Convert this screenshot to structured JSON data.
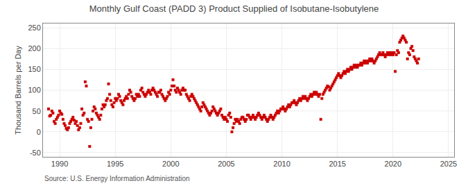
{
  "chart_data": {
    "type": "scatter",
    "title": "Monthly Gulf Coast (PADD 3) Product Supplied of Isobutane-Isobutylene",
    "ylabel": "Thousand Barrels per Day",
    "annotations": [
      "Source: U.S. Energy Information Administration"
    ],
    "color": "#cc0000",
    "marker": "square",
    "grid": true,
    "xlim": [
      1988.5,
      2025.5
    ],
    "ylim": [
      -60,
      260
    ],
    "xticks": [
      1990,
      1995,
      2000,
      2005,
      2010,
      2015,
      2020,
      2025
    ],
    "yticks": [
      -50,
      0,
      50,
      100,
      150,
      200,
      250
    ],
    "x": [
      1989.0,
      1989.1,
      1989.2,
      1989.3,
      1989.4,
      1989.5,
      1989.6,
      1989.7,
      1989.8,
      1989.9,
      1990.0,
      1990.1,
      1990.2,
      1990.3,
      1990.4,
      1990.5,
      1990.6,
      1990.7,
      1990.8,
      1990.9,
      1991.0,
      1991.1,
      1991.2,
      1991.3,
      1991.4,
      1991.5,
      1991.6,
      1991.7,
      1991.8,
      1991.9,
      1992.0,
      1992.1,
      1992.2,
      1992.3,
      1992.4,
      1992.5,
      1992.6,
      1992.7,
      1992.8,
      1992.9,
      1993.0,
      1993.1,
      1993.2,
      1993.3,
      1993.4,
      1993.5,
      1993.6,
      1993.7,
      1993.8,
      1993.9,
      1994.0,
      1994.1,
      1994.2,
      1994.3,
      1994.4,
      1994.5,
      1994.6,
      1994.7,
      1994.8,
      1994.9,
      1995.0,
      1995.1,
      1995.2,
      1995.3,
      1995.4,
      1995.5,
      1995.6,
      1995.7,
      1995.8,
      1995.9,
      1996.0,
      1996.1,
      1996.2,
      1996.3,
      1996.4,
      1996.5,
      1996.6,
      1996.7,
      1996.8,
      1996.9,
      1997.0,
      1997.1,
      1997.2,
      1997.3,
      1997.4,
      1997.5,
      1997.6,
      1997.7,
      1997.8,
      1997.9,
      1998.0,
      1998.1,
      1998.2,
      1998.3,
      1998.4,
      1998.5,
      1998.6,
      1998.7,
      1998.8,
      1998.9,
      1999.0,
      1999.1,
      1999.2,
      1999.3,
      1999.4,
      1999.5,
      1999.6,
      1999.7,
      1999.8,
      1999.9,
      2000.0,
      2000.1,
      2000.2,
      2000.3,
      2000.4,
      2000.5,
      2000.6,
      2000.7,
      2000.8,
      2000.9,
      2001.0,
      2001.1,
      2001.2,
      2001.3,
      2001.4,
      2001.5,
      2001.6,
      2001.7,
      2001.8,
      2001.9,
      2002.0,
      2002.1,
      2002.2,
      2002.3,
      2002.4,
      2002.5,
      2002.6,
      2002.7,
      2002.8,
      2002.9,
      2003.0,
      2003.1,
      2003.2,
      2003.3,
      2003.4,
      2003.5,
      2003.6,
      2003.7,
      2003.8,
      2003.9,
      2004.0,
      2004.1,
      2004.2,
      2004.3,
      2004.4,
      2004.5,
      2004.6,
      2004.7,
      2004.8,
      2004.9,
      2005.0,
      2005.1,
      2005.2,
      2005.3,
      2005.4,
      2005.5,
      2005.6,
      2005.7,
      2005.8,
      2005.9,
      2006.0,
      2006.1,
      2006.2,
      2006.3,
      2006.4,
      2006.5,
      2006.6,
      2006.7,
      2006.8,
      2006.9,
      2007.0,
      2007.1,
      2007.2,
      2007.3,
      2007.4,
      2007.5,
      2007.6,
      2007.7,
      2007.8,
      2007.9,
      2008.0,
      2008.1,
      2008.2,
      2008.3,
      2008.4,
      2008.5,
      2008.6,
      2008.7,
      2008.8,
      2008.9,
      2009.0,
      2009.1,
      2009.2,
      2009.3,
      2009.4,
      2009.5,
      2009.6,
      2009.7,
      2009.8,
      2009.9,
      2010.0,
      2010.1,
      2010.2,
      2010.3,
      2010.4,
      2010.5,
      2010.6,
      2010.7,
      2010.8,
      2010.9,
      2011.0,
      2011.1,
      2011.2,
      2011.3,
      2011.4,
      2011.5,
      2011.6,
      2011.7,
      2011.8,
      2011.9,
      2012.0,
      2012.1,
      2012.2,
      2012.3,
      2012.4,
      2012.5,
      2012.6,
      2012.7,
      2012.8,
      2012.9,
      2013.0,
      2013.1,
      2013.2,
      2013.3,
      2013.4,
      2013.5,
      2013.6,
      2013.7,
      2013.8,
      2013.9,
      2014.0,
      2014.1,
      2014.2,
      2014.3,
      2014.4,
      2014.5,
      2014.6,
      2014.7,
      2014.8,
      2014.9,
      2015.0,
      2015.1,
      2015.2,
      2015.3,
      2015.4,
      2015.5,
      2015.6,
      2015.7,
      2015.8,
      2015.9,
      2016.0,
      2016.1,
      2016.2,
      2016.3,
      2016.4,
      2016.5,
      2016.6,
      2016.7,
      2016.8,
      2016.9,
      2017.0,
      2017.1,
      2017.2,
      2017.3,
      2017.4,
      2017.5,
      2017.6,
      2017.7,
      2017.8,
      2017.9,
      2018.0,
      2018.1,
      2018.2,
      2018.3,
      2018.4,
      2018.5,
      2018.6,
      2018.7,
      2018.8,
      2018.9,
      2019.0,
      2019.1,
      2019.2,
      2019.3,
      2019.4,
      2019.5,
      2019.6,
      2019.7,
      2019.8,
      2019.9,
      2020.0,
      2020.1,
      2020.2,
      2020.3,
      2020.4,
      2020.5,
      2020.6,
      2020.7,
      2020.8,
      2020.9,
      2021.0,
      2021.1,
      2021.2,
      2021.3,
      2021.4,
      2021.5,
      2021.6,
      2021.7,
      2021.8,
      2021.9,
      2022.0,
      2022.1,
      2022.2,
      2022.3
    ],
    "values": [
      55,
      38,
      40,
      50,
      45,
      25,
      20,
      30,
      35,
      40,
      50,
      45,
      42,
      30,
      20,
      15,
      8,
      5,
      10,
      20,
      25,
      30,
      35,
      28,
      20,
      25,
      15,
      5,
      10,
      20,
      55,
      40,
      45,
      120,
      110,
      30,
      25,
      -35,
      10,
      30,
      50,
      60,
      55,
      45,
      40,
      35,
      30,
      40,
      55,
      65,
      60,
      65,
      75,
      80,
      115,
      90,
      75,
      65,
      60,
      70,
      80,
      75,
      80,
      90,
      85,
      75,
      70,
      65,
      75,
      80,
      85,
      80,
      90,
      100,
      95,
      85,
      80,
      75,
      80,
      90,
      85,
      90,
      85,
      100,
      105,
      95,
      90,
      85,
      90,
      95,
      100,
      95,
      90,
      100,
      105,
      100,
      95,
      90,
      85,
      95,
      95,
      100,
      90,
      85,
      80,
      75,
      80,
      85,
      95,
      90,
      100,
      110,
      125,
      110,
      100,
      95,
      105,
      100,
      95,
      90,
      100,
      105,
      100,
      100,
      90,
      85,
      80,
      75,
      85,
      90,
      85,
      80,
      75,
      70,
      65,
      60,
      55,
      50,
      60,
      70,
      65,
      60,
      55,
      50,
      45,
      40,
      45,
      50,
      60,
      55,
      50,
      45,
      40,
      45,
      50,
      55,
      40,
      35,
      30,
      35,
      30,
      25,
      40,
      45,
      35,
      0,
      10,
      20,
      30,
      25,
      30,
      25,
      20,
      30,
      35,
      35,
      30,
      25,
      30,
      40,
      40,
      35,
      30,
      35,
      40,
      35,
      30,
      35,
      40,
      45,
      40,
      35,
      30,
      35,
      40,
      35,
      30,
      25,
      30,
      35,
      40,
      35,
      30,
      35,
      40,
      45,
      50,
      45,
      50,
      55,
      55,
      60,
      55,
      50,
      55,
      60,
      65,
      60,
      65,
      70,
      70,
      75,
      70,
      65,
      70,
      75,
      80,
      75,
      80,
      85,
      80,
      85,
      80,
      75,
      80,
      85,
      90,
      85,
      90,
      95,
      90,
      95,
      90,
      85,
      90,
      30,
      80,
      90,
      95,
      100,
      105,
      110,
      108,
      100,
      105,
      110,
      115,
      120,
      125,
      130,
      135,
      140,
      135,
      130,
      135,
      140,
      145,
      140,
      145,
      150,
      145,
      150,
      155,
      150,
      155,
      160,
      155,
      160,
      155,
      160,
      160,
      165,
      160,
      165,
      170,
      165,
      170,
      165,
      170,
      175,
      170,
      175,
      170,
      165,
      170,
      175,
      180,
      185,
      190,
      185,
      185,
      190,
      185,
      180,
      185,
      190,
      185,
      190,
      185,
      190,
      185,
      190,
      145,
      185,
      195,
      190,
      215,
      220,
      225,
      230,
      225,
      220,
      215,
      175,
      190,
      185,
      200,
      205,
      195,
      180,
      175,
      170,
      165,
      175
    ]
  }
}
